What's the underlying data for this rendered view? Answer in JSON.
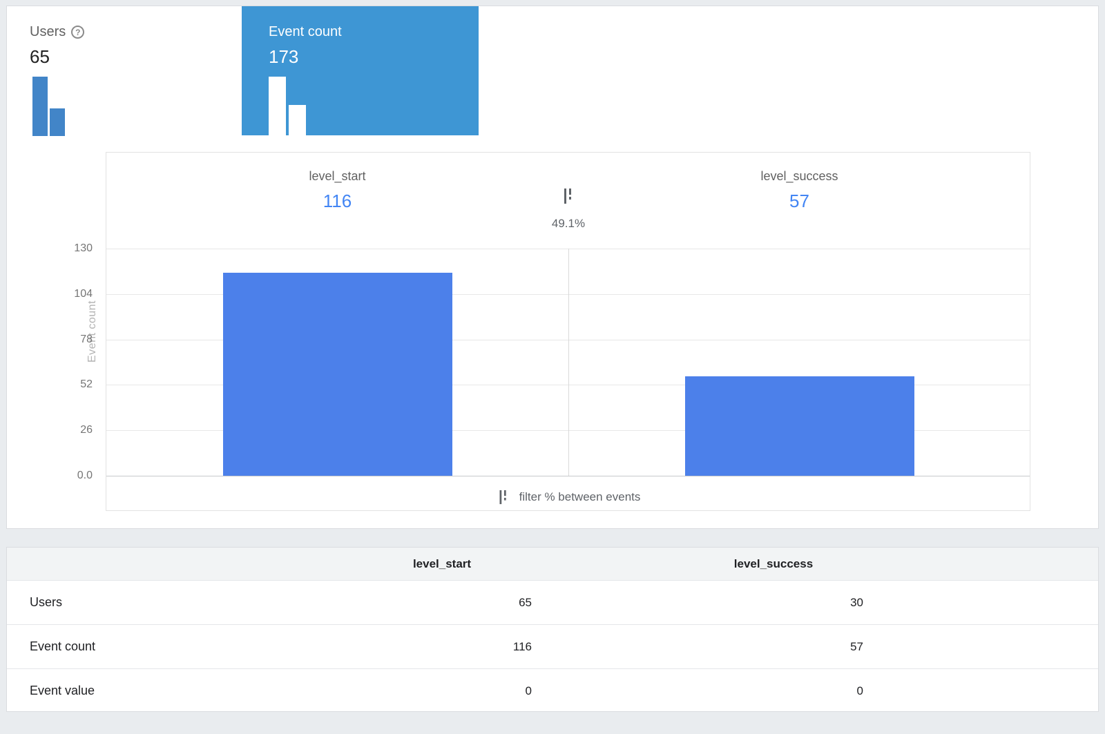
{
  "colors": {
    "selected_card": "#3e96d4",
    "bar": "#4c80ea",
    "mini_bar": "#4285c8",
    "value_blue": "#4285f4"
  },
  "help_icon": "?",
  "metric_cards": {
    "users": {
      "label": "Users",
      "value": "65"
    },
    "event_count": {
      "label": "Event count",
      "value": "173"
    }
  },
  "chart": {
    "events": [
      {
        "name": "level_start",
        "count": "116"
      },
      {
        "name": "level_success",
        "count": "57"
      }
    ],
    "percent_between": "49.1%",
    "y_axis_title": "Event count",
    "y_ticks": [
      "130",
      "104",
      "78",
      "52",
      "26",
      "0.0"
    ],
    "footer_label": "filter % between events"
  },
  "chart_data": {
    "type": "bar",
    "categories": [
      "level_start",
      "level_success"
    ],
    "values": [
      116,
      57
    ],
    "title": "",
    "xlabel": "",
    "ylabel": "Event count",
    "ylim": [
      0,
      130
    ],
    "yticks": [
      0,
      26,
      52,
      78,
      104,
      130
    ],
    "percent_between_events": "49.1%",
    "grid": true,
    "legend": false
  },
  "table": {
    "columns": [
      "level_start",
      "level_success"
    ],
    "rows": [
      {
        "label": "Users",
        "values": [
          "65",
          "30"
        ]
      },
      {
        "label": "Event count",
        "values": [
          "116",
          "57"
        ]
      },
      {
        "label": "Event value",
        "values": [
          "0",
          "0"
        ]
      }
    ]
  }
}
